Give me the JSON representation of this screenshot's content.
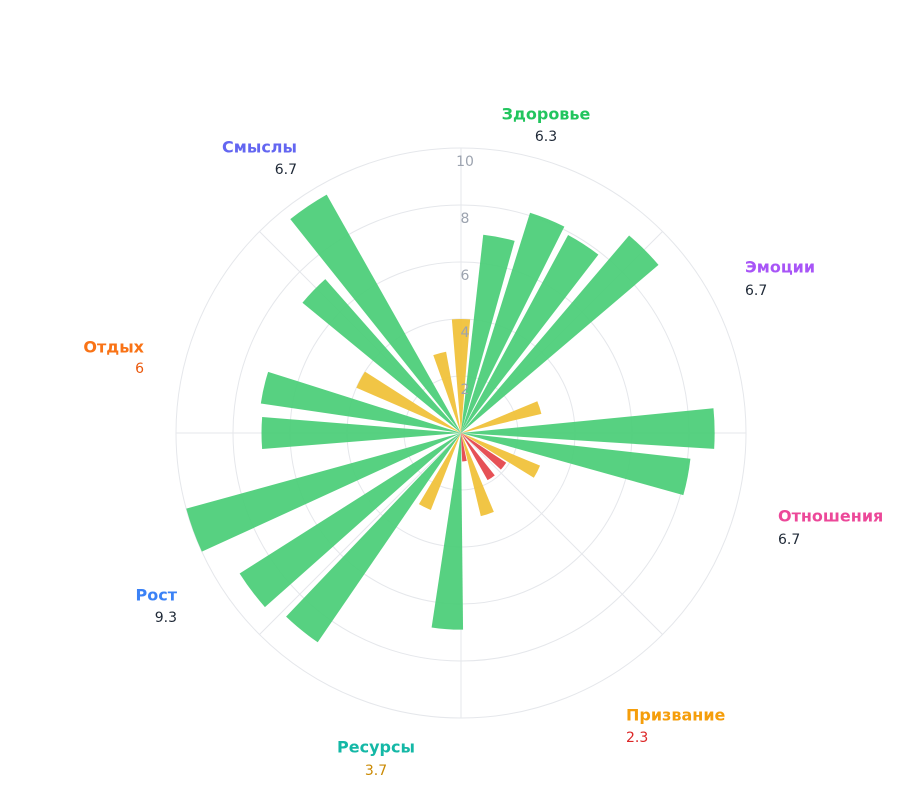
{
  "chart_data": {
    "type": "polar_bar",
    "rlim": [
      0,
      10
    ],
    "rticks": [
      2,
      4,
      6,
      8,
      10
    ],
    "sectors": [
      {
        "name": "Здоровье",
        "score": 6.3,
        "color": "#22c55e",
        "score_color": "#1f2937"
      },
      {
        "name": "Эмоции",
        "score": 6.7,
        "color": "#a855f7",
        "score_color": "#1f2937"
      },
      {
        "name": "Отношения",
        "score": 6.7,
        "color": "#ec4899",
        "score_color": "#1f2937"
      },
      {
        "name": "Призвание",
        "score": 2.3,
        "color": "#f59e0b",
        "score_color": "#dc2626"
      },
      {
        "name": "Ресурсы",
        "score": 3.7,
        "color": "#14b8a6",
        "score_color": "#ca8a04"
      },
      {
        "name": "Рост",
        "score": 9.3,
        "color": "#3b82f6",
        "score_color": "#1f2937"
      },
      {
        "name": "Отдых",
        "score": 6.0,
        "color": "#f97316",
        "score_color": "#ea580c"
      },
      {
        "name": "Смыслы",
        "score": 6.7,
        "color": "#6366f1",
        "score_color": "#1f2937"
      }
    ],
    "bars": [
      {
        "angle": 0,
        "value": 4.0,
        "color": "#f0c23b"
      },
      {
        "angle": 11,
        "value": 7.0,
        "color": "#4ecf7a"
      },
      {
        "angle": 22,
        "value": 8.1,
        "color": "#4ecf7a"
      },
      {
        "angle": 33,
        "value": 7.9,
        "color": "#4ecf7a"
      },
      {
        "angle": 45,
        "value": 9.1,
        "color": "#4ecf7a"
      },
      {
        "angle": 72,
        "value": 2.9,
        "color": "#f0c23b"
      },
      {
        "angle": 89,
        "value": 8.9,
        "color": "#4ecf7a"
      },
      {
        "angle": 101,
        "value": 8.1,
        "color": "#4ecf7a"
      },
      {
        "angle": 117,
        "value": 3.0,
        "color": "#f0c23b"
      },
      {
        "angle": 128,
        "value": 1.9,
        "color": "#e5484d"
      },
      {
        "angle": 146,
        "value": 1.9,
        "color": "#e5484d"
      },
      {
        "angle": 162,
        "value": 3.0,
        "color": "#f0c23b"
      },
      {
        "angle": 173,
        "value": 1.0,
        "color": "#e5484d"
      },
      {
        "angle": 184,
        "value": 6.9,
        "color": "#4ecf7a"
      },
      {
        "angle": 206,
        "value": 2.9,
        "color": "#f0c23b"
      },
      {
        "angle": 219,
        "value": 8.9,
        "color": "#4ecf7a"
      },
      {
        "angle": 233,
        "value": 9.2,
        "color": "#4ecf7a"
      },
      {
        "angle": 250,
        "value": 10,
        "color": "#4ecf7a"
      },
      {
        "angle": 270,
        "value": 7.0,
        "color": "#4ecf7a"
      },
      {
        "angle": 283,
        "value": 7.1,
        "color": "#4ecf7a"
      },
      {
        "angle": 298,
        "value": 4.0,
        "color": "#f0c23b"
      },
      {
        "angle": 314,
        "value": 7.2,
        "color": "#4ecf7a"
      },
      {
        "angle": 326,
        "value": 9.6,
        "color": "#4ecf7a"
      },
      {
        "angle": 345,
        "value": 2.9,
        "color": "#f0c23b"
      }
    ]
  }
}
